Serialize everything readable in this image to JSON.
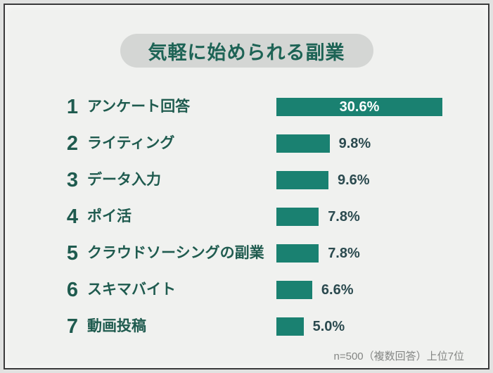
{
  "title": "気軽に始められる副業",
  "footnote": "n=500（複数回答）上位7位",
  "colors": {
    "bar": "#1a8171",
    "title_text": "#1d6355",
    "label_text": "#1f5b4f",
    "value_text": "#2b4a4f",
    "value_inside_text": "#ffffff",
    "pill_bg": "#d4d6d4",
    "panel_bg": "#f0f1ef",
    "page_bg": "#e1e2e1",
    "border": "#3a3a3b",
    "footnote_text": "#848684"
  },
  "chart_data": {
    "type": "bar",
    "orientation": "horizontal",
    "title": "気軽に始められる副業",
    "note": "n=500（複数回答）上位7位",
    "legend": "none",
    "grid": false,
    "xlim": [
      0,
      30.6
    ],
    "categories": [
      "アンケート回答",
      "ライティング",
      "データ入力",
      "ポイ活",
      "クラウドソーシングの副業",
      "スキマバイト",
      "動画投稿"
    ],
    "values": [
      30.6,
      9.8,
      9.6,
      7.8,
      7.8,
      6.6,
      5.0
    ],
    "items": [
      {
        "rank": "1",
        "label": "アンケート回答",
        "value": 30.6,
        "value_label": "30.6%",
        "value_inside": true
      },
      {
        "rank": "2",
        "label": "ライティング",
        "value": 9.8,
        "value_label": "9.8%",
        "value_inside": false
      },
      {
        "rank": "3",
        "label": "データ入力",
        "value": 9.6,
        "value_label": "9.6%",
        "value_inside": false
      },
      {
        "rank": "4",
        "label": "ポイ活",
        "value": 7.8,
        "value_label": "7.8%",
        "value_inside": false
      },
      {
        "rank": "5",
        "label": "クラウドソーシングの副業",
        "value": 7.8,
        "value_label": "7.8%",
        "value_inside": false
      },
      {
        "rank": "6",
        "label": "スキマバイト",
        "value": 6.6,
        "value_label": "6.6%",
        "value_inside": false
      },
      {
        "rank": "7",
        "label": "動画投稿",
        "value": 5.0,
        "value_label": "5.0%",
        "value_inside": false
      }
    ]
  }
}
